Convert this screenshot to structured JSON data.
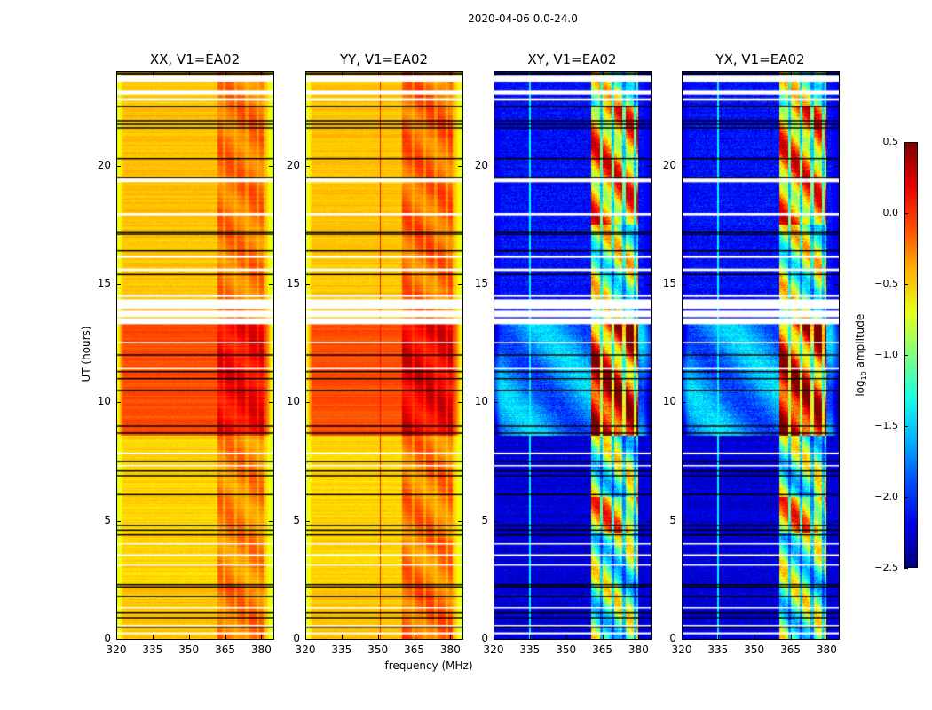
{
  "chart_data": {
    "type": "heatmap",
    "title": "2020-04-06 0.0-24.0",
    "xlabel": "frequency (MHz)",
    "ylabel": "UT (hours)",
    "xlim": [
      320,
      385
    ],
    "ylim": [
      0,
      24
    ],
    "xticks": [
      320,
      335,
      350,
      365,
      380
    ],
    "yticks": [
      0,
      5,
      10,
      15,
      20
    ],
    "colorbar": {
      "label_prefix": "log",
      "label_sub": "10",
      "label_suffix": " amplitude",
      "colormap": "jet",
      "range": [
        -2.5,
        0.5
      ],
      "ticks": [
        "0.5",
        "0.0",
        "−0.5",
        "−1.0",
        "−1.5",
        "−2.0",
        "−2.5"
      ],
      "tick_values": [
        0.5,
        0.0,
        -0.5,
        -1.0,
        -1.5,
        -2.0,
        -2.5
      ]
    },
    "panels": [
      {
        "title": "XX, V1=EA02",
        "kind": "parallel",
        "time_segments": [
          [
            0,
            2.3,
            -0.45
          ],
          [
            2.3,
            8.6,
            -0.5
          ],
          [
            8.6,
            13.3,
            -0.1
          ],
          [
            13.3,
            24,
            -0.45
          ]
        ],
        "rfi_band_mhz": [
          362,
          381
        ],
        "rfi_boost": 0.3,
        "edge_value": -0.8,
        "line_mhz": null
      },
      {
        "title": "YY, V1=EA02",
        "kind": "parallel",
        "time_segments": [
          [
            0,
            2.3,
            -0.45
          ],
          [
            2.3,
            8.6,
            -0.5
          ],
          [
            8.6,
            13.3,
            -0.1
          ],
          [
            13.3,
            24,
            -0.45
          ]
        ],
        "rfi_band_mhz": [
          360,
          381
        ],
        "rfi_boost": 0.35,
        "edge_value": -0.8,
        "line_mhz": 351
      },
      {
        "title": "XY, V1=EA02",
        "kind": "cross",
        "time_segments": [
          [
            0,
            8.6,
            -2.25
          ],
          [
            8.6,
            13.3,
            -1.7
          ],
          [
            13.3,
            24,
            -2.1
          ]
        ],
        "rfi_band_mhz": [
          360.5,
          380
        ],
        "rfi_boost": 1.5,
        "edge_value": -2.2,
        "line_mhz": 335
      },
      {
        "title": "YX, V1=EA02",
        "kind": "cross",
        "time_segments": [
          [
            0,
            8.6,
            -2.25
          ],
          [
            8.6,
            13.3,
            -1.7
          ],
          [
            13.3,
            24,
            -2.1
          ]
        ],
        "rfi_band_mhz": [
          360.5,
          380
        ],
        "rfi_boost": 1.5,
        "edge_value": -2.2,
        "line_mhz": 335
      }
    ],
    "flagged_hours": [
      [
        23.55,
        23.8
      ],
      [
        23.0,
        23.2
      ],
      [
        22.75,
        22.85
      ],
      [
        19.3,
        19.45
      ],
      [
        17.9,
        18.0
      ],
      [
        16.1,
        16.2
      ],
      [
        15.55,
        15.65
      ],
      [
        13.3,
        13.55
      ],
      [
        13.6,
        13.9
      ],
      [
        13.95,
        14.35
      ],
      [
        14.45,
        14.55
      ],
      [
        12.5,
        12.55
      ],
      [
        11.4,
        11.45
      ],
      [
        7.8,
        7.88
      ],
      [
        7.3,
        7.35
      ],
      [
        4.0,
        4.05
      ],
      [
        3.5,
        3.58
      ],
      [
        3.1,
        3.15
      ],
      [
        1.3,
        1.35
      ],
      [
        0.55,
        0.6
      ],
      [
        0.2,
        0.28
      ]
    ],
    "black_line_hours": [
      23.85,
      23.92,
      22.5,
      21.9,
      21.75,
      21.6,
      20.3,
      19.5,
      17.1,
      17.2,
      16.4,
      15.4,
      12.0,
      11.3,
      11.0,
      10.5,
      9.0,
      8.7,
      7.5,
      7.1,
      6.9,
      6.1,
      4.8,
      4.6,
      4.4,
      2.3,
      2.2,
      1.8,
      1.1,
      0.9,
      0.5
    ]
  }
}
